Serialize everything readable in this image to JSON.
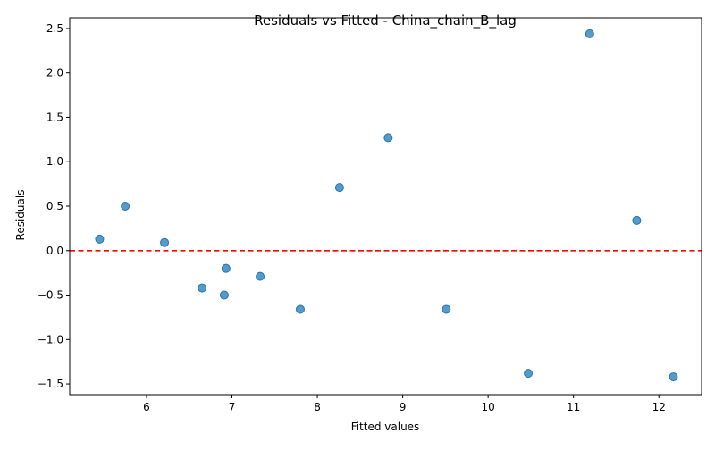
{
  "chart_data": {
    "type": "scatter",
    "title": "Residuals vs Fitted - China_chain_B_lag",
    "xlabel": "Fitted values",
    "ylabel": "Residuals",
    "xlim": [
      5.1,
      12.5
    ],
    "ylim": [
      -1.62,
      2.62
    ],
    "xticks": [
      6,
      7,
      8,
      9,
      10,
      11,
      12
    ],
    "yticks": [
      -1.5,
      -1.0,
      -0.5,
      0.0,
      0.5,
      1.0,
      1.5,
      2.0,
      2.5
    ],
    "xtick_labels": [
      "6",
      "7",
      "8",
      "9",
      "10",
      "11",
      "12"
    ],
    "ytick_labels": [
      "−1.5",
      "−1.0",
      "−0.5",
      "0.0",
      "0.5",
      "1.0",
      "1.5",
      "2.0",
      "2.5"
    ],
    "grid": false,
    "reference_line": {
      "y": 0,
      "style": "dashed",
      "color": "#ff0000"
    },
    "point_color": "#1f77b4",
    "points": [
      {
        "x": 5.45,
        "y": 0.13
      },
      {
        "x": 5.75,
        "y": 0.5
      },
      {
        "x": 6.21,
        "y": 0.09
      },
      {
        "x": 6.65,
        "y": -0.42
      },
      {
        "x": 6.91,
        "y": -0.5
      },
      {
        "x": 6.93,
        "y": -0.2
      },
      {
        "x": 7.33,
        "y": -0.29
      },
      {
        "x": 7.8,
        "y": -0.66
      },
      {
        "x": 8.26,
        "y": 0.71
      },
      {
        "x": 8.83,
        "y": 1.27
      },
      {
        "x": 9.51,
        "y": -0.66
      },
      {
        "x": 10.47,
        "y": -1.38
      },
      {
        "x": 11.19,
        "y": 2.44
      },
      {
        "x": 11.74,
        "y": 0.34
      },
      {
        "x": 12.17,
        "y": -1.42
      }
    ]
  }
}
